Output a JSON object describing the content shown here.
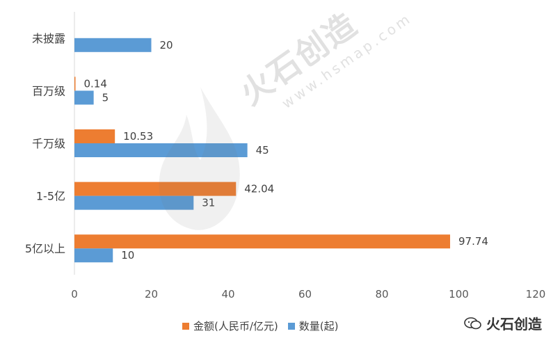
{
  "chart_data": {
    "type": "bar",
    "orientation": "horizontal",
    "categories": [
      "未披露",
      "百万级",
      "千万级",
      "1-5亿",
      "5亿以上"
    ],
    "series": [
      {
        "name": "金额(人民币/亿元)",
        "color": "#ED7D31",
        "values": [
          null,
          0.14,
          10.53,
          42.04,
          97.74
        ]
      },
      {
        "name": "数量(起)",
        "color": "#5B9BD5",
        "values": [
          20,
          5,
          45,
          31,
          10
        ]
      }
    ],
    "data_labels": {
      "0": [
        null,
        "0.14",
        "10.53",
        "42.04",
        "97.74"
      ],
      "1": [
        "20",
        "5",
        "45",
        "31",
        "10"
      ]
    },
    "xlim": [
      0,
      120
    ],
    "xticks": [
      "0",
      "20",
      "40",
      "60",
      "80",
      "100",
      "120"
    ],
    "grid": false,
    "legend_position": "bottom"
  },
  "watermark": {
    "text": "火石创造",
    "url": "www.hsmap.com"
  },
  "brand": {
    "text": "火石创造",
    "icon": "wechat-icon"
  }
}
